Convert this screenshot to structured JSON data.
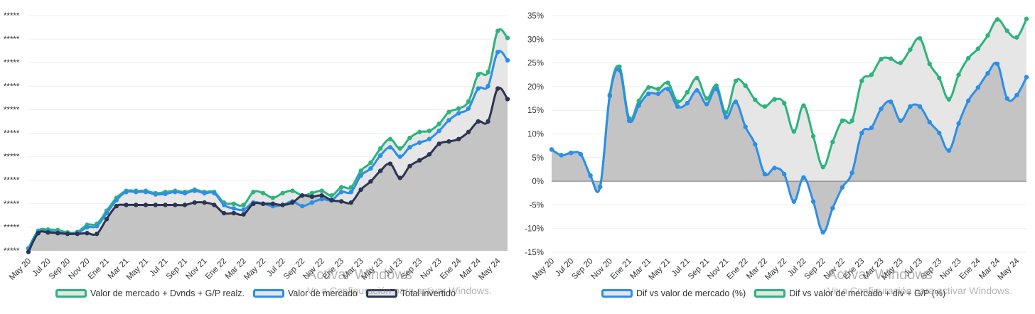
{
  "charts": [
    {
      "legend": [
        "Valor de mercado + Dvnds + G/P realz.",
        "Valor de mercado",
        "Total invertido"
      ]
    },
    {
      "legend": [
        "Dif vs valor de mercado (%)",
        "Dif vs valor de mercado + div + G/P (%)"
      ]
    }
  ],
  "watermark": {
    "title": "Activar Windows",
    "subtitle": "Ve a Configuración para activar Windows."
  },
  "colors": {
    "green": "#2db37c",
    "blue": "#2c8ee8",
    "navy": "#2b3452",
    "fill_light": "#e6e6e6",
    "fill_dark": "#c4c4c4",
    "grid": "#ececec"
  },
  "chart_data": [
    {
      "type": "area",
      "categories": [
        "May 20",
        "Jun 20",
        "Jul 20",
        "Aug 20",
        "Sep 20",
        "Oct 20",
        "Nov 20",
        "Dec 20",
        "Ene 21",
        "Feb 21",
        "Mar 21",
        "Apr 21",
        "May 21",
        "Jun 21",
        "Jul 21",
        "Aug 21",
        "Sep 21",
        "Oct 21",
        "Nov 21",
        "Dec 21",
        "Ene 22",
        "Feb 22",
        "Mar 22",
        "Apr 22",
        "May 22",
        "Jun 22",
        "Jul 22",
        "Aug 22",
        "Sep 22",
        "Oct 22",
        "Nov 22",
        "Dec 22",
        "Ene 23",
        "Feb 23",
        "Mar 23",
        "Apr 23",
        "May 23",
        "Jun 23",
        "Jul 23",
        "Aug 23",
        "Sep 23",
        "Oct 23",
        "Nov 23",
        "Dec 23",
        "Ene 24",
        "Feb 24",
        "Mar 24",
        "Apr 24",
        "May 24",
        "Jun 24"
      ],
      "x_tick_labels": [
        "May 20",
        "Jul 20",
        "Sep 20",
        "Nov 20",
        "Ene 21",
        "Mar 21",
        "May 21",
        "Jul 21",
        "Sep 21",
        "Nov 21",
        "Ene 22",
        "Mar 22",
        "May 22",
        "Jul 22",
        "Sep 22",
        "Nov 22",
        "Ene 23",
        "Mar 23",
        "May 23",
        "Jul 23",
        "Sep 23",
        "Nov 23",
        "Ene 24",
        "Mar 24",
        "May 24"
      ],
      "y_tick_labels": [
        "*****",
        "*****",
        "*****",
        "*****",
        "*****",
        "*****",
        "*****",
        "*****",
        "*****",
        "*****",
        "*****"
      ],
      "ylim": [
        0,
        10
      ],
      "grid": true,
      "legend_position": "bottom",
      "series": [
        {
          "name": "Valor de mercado + Dvnds + G/P realz.",
          "color": "#2db37c",
          "values": [
            0.1,
            0.85,
            0.9,
            0.88,
            0.78,
            0.8,
            1.1,
            1.15,
            1.7,
            2.25,
            2.55,
            2.55,
            2.55,
            2.45,
            2.5,
            2.55,
            2.5,
            2.6,
            2.5,
            2.5,
            2.05,
            2.0,
            1.95,
            2.5,
            2.45,
            2.25,
            2.45,
            2.55,
            2.35,
            2.45,
            2.55,
            2.35,
            2.7,
            2.7,
            3.4,
            3.75,
            4.35,
            4.75,
            4.35,
            4.8,
            5.05,
            5.1,
            5.4,
            5.9,
            6.05,
            6.35,
            7.5,
            7.6,
            9.35,
            9.05
          ]
        },
        {
          "name": "Valor de mercado",
          "color": "#2c8ee8",
          "values": [
            0.1,
            0.8,
            0.82,
            0.78,
            0.72,
            0.75,
            1.0,
            1.05,
            1.6,
            2.15,
            2.5,
            2.5,
            2.5,
            2.4,
            2.42,
            2.5,
            2.45,
            2.55,
            2.45,
            2.45,
            1.95,
            1.8,
            1.75,
            2.05,
            2.0,
            1.9,
            1.95,
            2.1,
            1.9,
            2.05,
            2.2,
            2.15,
            2.5,
            2.5,
            3.2,
            3.5,
            4.05,
            4.4,
            4.0,
            4.4,
            4.6,
            4.75,
            5.1,
            5.55,
            5.85,
            6.05,
            6.9,
            7.0,
            8.45,
            8.1
          ]
        },
        {
          "name": "Total invertido",
          "color": "#2b3452",
          "values": [
            -0.05,
            0.75,
            0.78,
            0.75,
            0.72,
            0.72,
            0.75,
            0.72,
            1.35,
            1.9,
            1.95,
            1.95,
            1.95,
            1.95,
            1.95,
            1.95,
            1.95,
            2.05,
            2.05,
            1.95,
            1.6,
            1.6,
            1.55,
            2.0,
            2.0,
            2.0,
            1.95,
            2.05,
            2.35,
            2.3,
            2.35,
            2.15,
            2.1,
            2.05,
            2.6,
            2.95,
            3.4,
            3.7,
            3.1,
            3.6,
            3.85,
            4.1,
            4.55,
            4.65,
            4.75,
            5.05,
            5.5,
            5.5,
            6.9,
            6.45
          ]
        }
      ]
    },
    {
      "type": "area",
      "categories": [
        "May 20",
        "Jun 20",
        "Jul 20",
        "Aug 20",
        "Sep 20",
        "Oct 20",
        "Nov 20",
        "Dec 20",
        "Ene 21",
        "Feb 21",
        "Mar 21",
        "Apr 21",
        "May 21",
        "Jun 21",
        "Jul 21",
        "Aug 21",
        "Sep 21",
        "Oct 21",
        "Nov 21",
        "Dec 21",
        "Ene 22",
        "Feb 22",
        "Mar 22",
        "Apr 22",
        "May 22",
        "Jun 22",
        "Jul 22",
        "Aug 22",
        "Sep 22",
        "Oct 22",
        "Nov 22",
        "Dec 22",
        "Ene 23",
        "Feb 23",
        "Mar 23",
        "Apr 23",
        "May 23",
        "Jun 23",
        "Jul 23",
        "Aug 23",
        "Sep 23",
        "Oct 23",
        "Nov 23",
        "Dec 23",
        "Ene 24",
        "Feb 24",
        "Mar 24",
        "Apr 24",
        "May 24",
        "Jun 24"
      ],
      "x_tick_labels": [
        "May 20",
        "Jul 20",
        "Sep 20",
        "Nov 20",
        "Ene 21",
        "Mar 21",
        "May 21",
        "Jul 21",
        "Sep 21",
        "Nov 21",
        "Ene 22",
        "Mar 22",
        "May 22",
        "Jul 22",
        "Sep 22",
        "Nov 22",
        "Ene 23",
        "Mar 23",
        "May 23",
        "Jul 23",
        "Sep 23",
        "Nov 23",
        "Ene 24",
        "Mar 24",
        "May 24"
      ],
      "y_tick_labels": [
        "35%",
        "30%",
        "25%",
        "20%",
        "15%",
        "10%",
        "5%",
        "0%",
        "-5%",
        "-10%",
        "-15%"
      ],
      "ylim": [
        -15,
        35
      ],
      "grid": true,
      "legend_position": "bottom",
      "series": [
        {
          "name": "Dif vs valor de mercado (%)",
          "color": "#2c8ee8",
          "values": [
            6.7,
            5.5,
            6.0,
            5.7,
            1.2,
            -1.2,
            18.0,
            23.5,
            12.8,
            16.0,
            18.5,
            18.5,
            19.5,
            15.8,
            16.5,
            19.2,
            16.3,
            19.5,
            13.5,
            16.8,
            11.5,
            7.8,
            1.5,
            2.8,
            1.5,
            -4.3,
            0.8,
            -4.3,
            -10.8,
            -5.7,
            -1.3,
            1.8,
            10.2,
            11.3,
            15.3,
            16.8,
            12.8,
            15.8,
            15.8,
            12.5,
            10.2,
            6.5,
            12.2,
            17.0,
            19.8,
            22.8,
            24.8,
            17.5,
            18.2,
            22.0
          ]
        },
        {
          "name": "Dif vs valor de mercado + div + G/P (%)",
          "color": "#2db37c",
          "values": [
            6.7,
            5.5,
            6.0,
            5.7,
            1.2,
            -1.2,
            18.3,
            24.2,
            13.3,
            17.0,
            19.8,
            19.5,
            20.8,
            16.8,
            18.8,
            21.8,
            17.5,
            20.2,
            14.5,
            21.2,
            20.2,
            17.2,
            15.8,
            17.3,
            16.5,
            10.5,
            16.0,
            9.5,
            3.0,
            8.3,
            12.8,
            12.8,
            21.2,
            22.5,
            25.8,
            25.9,
            25.0,
            27.8,
            30.2,
            24.8,
            21.8,
            17.3,
            22.5,
            26.0,
            28.0,
            30.8,
            34.2,
            31.8,
            30.4,
            34.3
          ]
        }
      ]
    }
  ]
}
